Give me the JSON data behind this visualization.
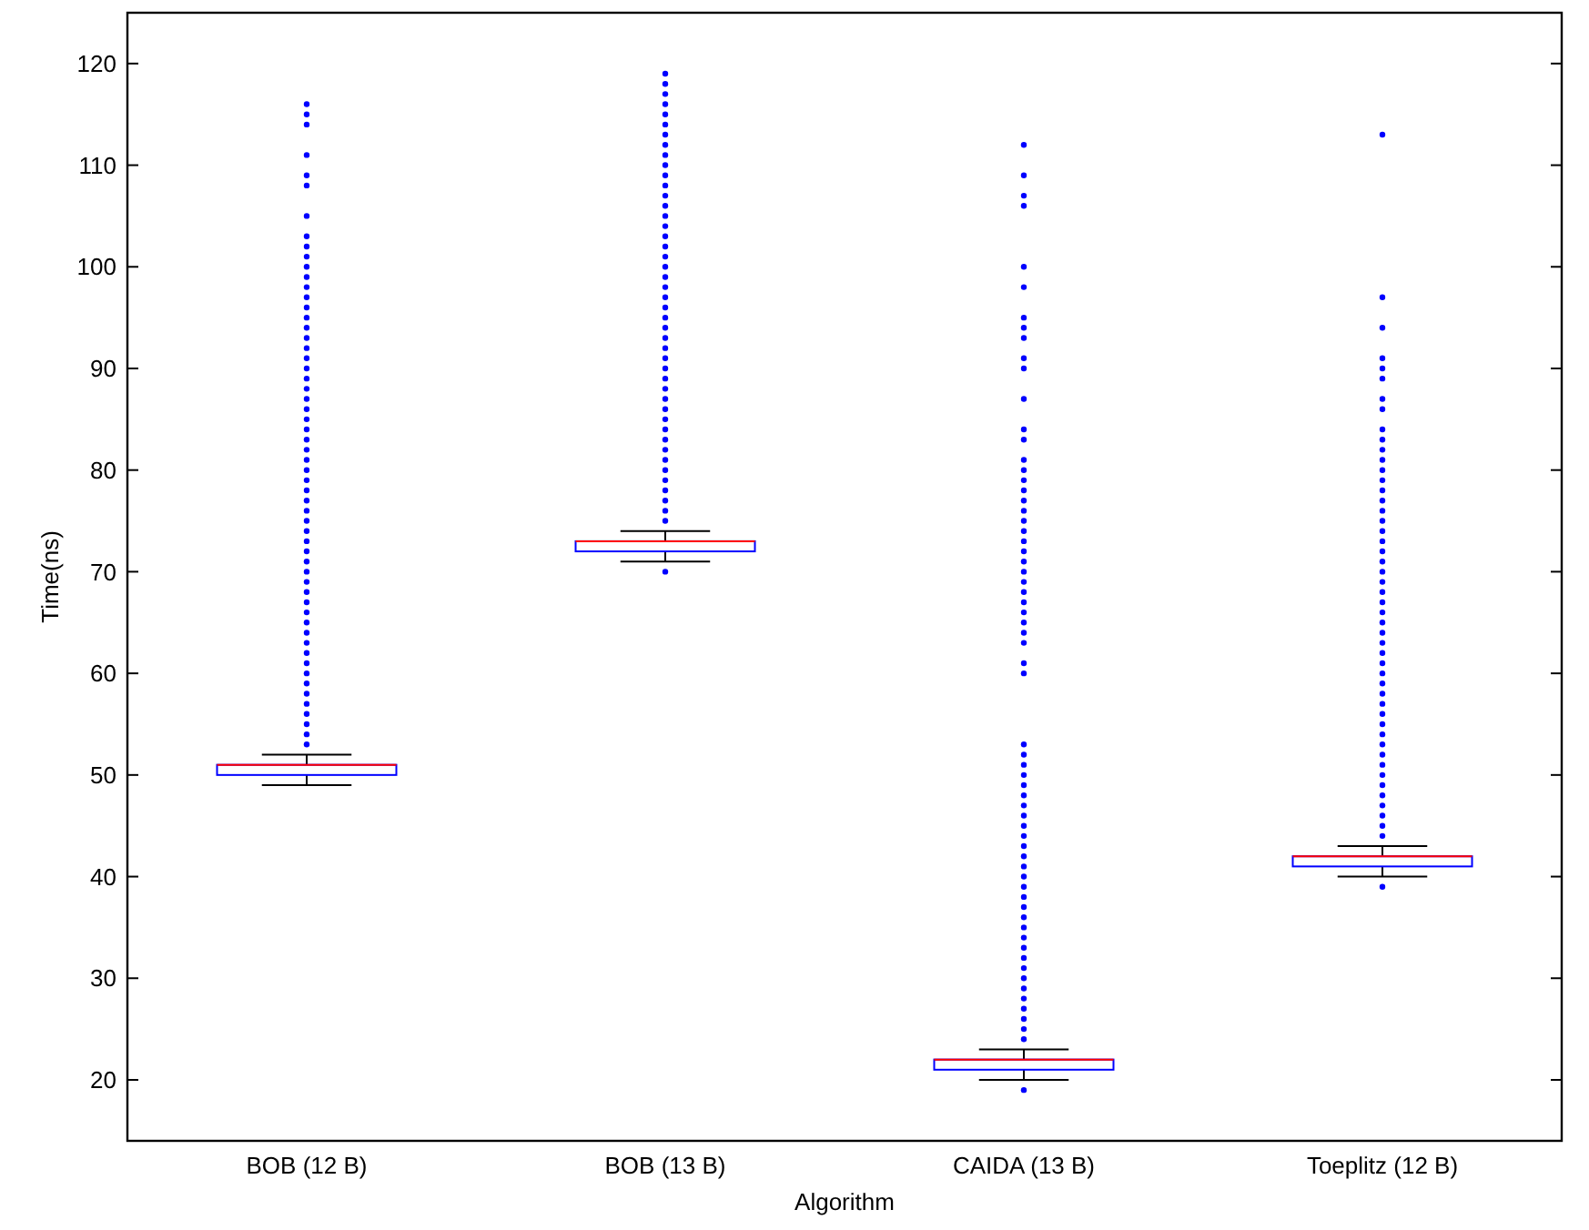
{
  "chart_data": {
    "type": "box",
    "xlabel": "Algorithm",
    "ylabel": "Time(ns)",
    "categories": [
      "BOB (12 B)",
      "BOB (13 B)",
      "CAIDA (13 B)",
      "Toeplitz (12 B)"
    ],
    "ylim": [
      14,
      125
    ],
    "yticks": [
      20,
      30,
      40,
      50,
      60,
      70,
      80,
      90,
      100,
      110,
      120
    ],
    "grid": false,
    "marker": "circle",
    "series": [
      {
        "color": "#0000ff",
        "boxes": [
          {
            "low": 49,
            "q1": 50,
            "median": 51,
            "q3": 51,
            "high": 52,
            "outliers": [
              53,
              54,
              55,
              56,
              57,
              58,
              59,
              60,
              61,
              62,
              63,
              64,
              65,
              66,
              67,
              68,
              69,
              70,
              71,
              72,
              73,
              74,
              75,
              76,
              77,
              78,
              79,
              80,
              81,
              82,
              83,
              84,
              85,
              86,
              87,
              88,
              89,
              90,
              91,
              92,
              93,
              94,
              95,
              96,
              97,
              98,
              99,
              100,
              101,
              102,
              103,
              105,
              108,
              109,
              111,
              114,
              115,
              116
            ]
          },
          {
            "low": 71,
            "q1": 72,
            "median": 73,
            "q3": 73,
            "high": 74,
            "outliers": [
              70,
              75,
              76,
              77,
              78,
              79,
              80,
              81,
              82,
              83,
              84,
              85,
              86,
              87,
              88,
              89,
              90,
              91,
              92,
              93,
              94,
              95,
              96,
              97,
              98,
              99,
              100,
              101,
              102,
              103,
              104,
              105,
              106,
              107,
              108,
              109,
              110,
              111,
              112,
              113,
              114,
              115,
              116,
              117,
              118,
              119
            ]
          },
          {
            "low": 20,
            "q1": 21,
            "median": 22,
            "q3": 22,
            "high": 23,
            "outliers": [
              19,
              24,
              25,
              26,
              27,
              28,
              29,
              30,
              31,
              32,
              33,
              34,
              35,
              36,
              37,
              38,
              39,
              40,
              41,
              42,
              43,
              44,
              45,
              46,
              47,
              48,
              49,
              50,
              51,
              52,
              53,
              60,
              61,
              63,
              64,
              65,
              66,
              67,
              68,
              69,
              70,
              71,
              72,
              73,
              74,
              75,
              76,
              77,
              78,
              79,
              80,
              81,
              83,
              84,
              87,
              90,
              91,
              93,
              94,
              95,
              98,
              100,
              106,
              107,
              109,
              112
            ]
          },
          {
            "low": 40,
            "q1": 41,
            "median": 42,
            "q3": 42,
            "high": 43,
            "outliers": [
              39,
              44,
              45,
              46,
              47,
              48,
              49,
              50,
              51,
              52,
              53,
              54,
              55,
              56,
              57,
              58,
              59,
              60,
              61,
              62,
              63,
              64,
              65,
              66,
              67,
              68,
              69,
              70,
              71,
              72,
              73,
              74,
              75,
              76,
              77,
              78,
              79,
              80,
              81,
              82,
              83,
              84,
              86,
              87,
              89,
              90,
              91,
              94,
              97,
              113
            ]
          }
        ]
      }
    ]
  }
}
